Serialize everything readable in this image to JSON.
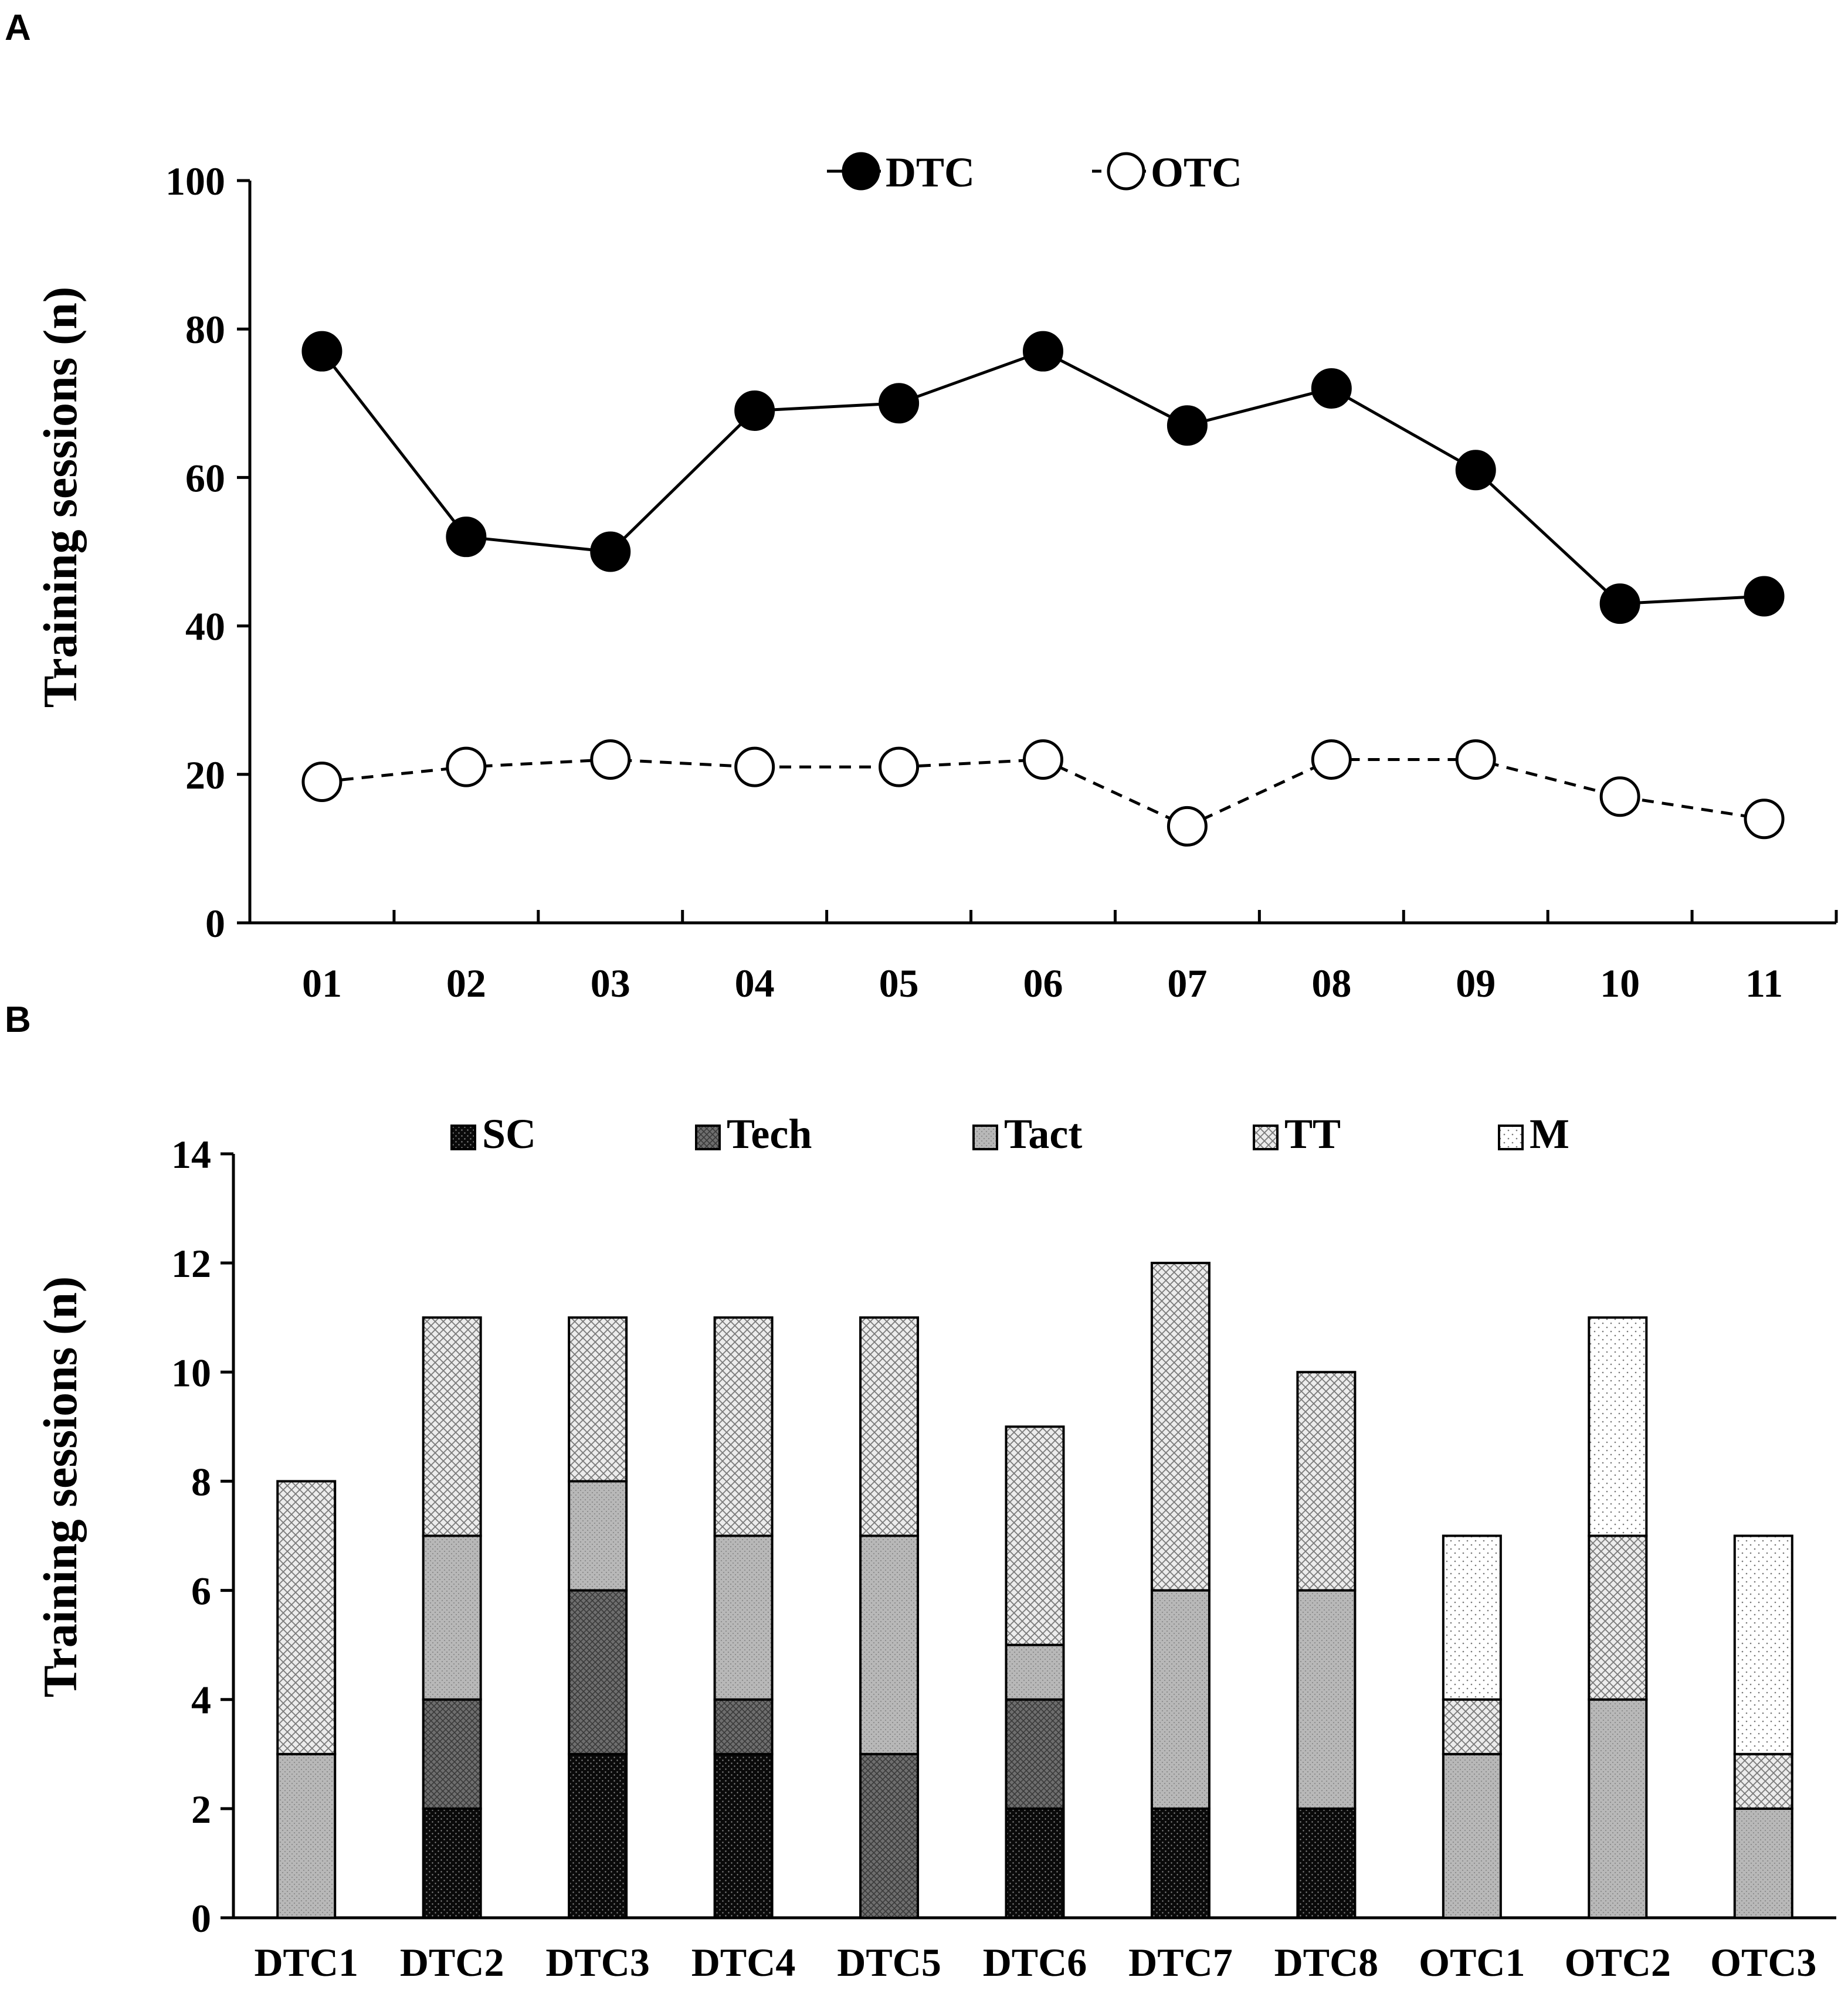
{
  "panels": {
    "a_letter": "A",
    "b_letter": "B"
  },
  "chart_data": [
    {
      "type": "line",
      "categories": [
        "01",
        "02",
        "03",
        "04",
        "05",
        "06",
        "07",
        "08",
        "09",
        "10",
        "11"
      ],
      "series": [
        {
          "name": "DTC",
          "values": [
            77,
            52,
            50,
            69,
            70,
            77,
            67,
            72,
            61,
            43,
            44
          ],
          "marker": "filled-circle",
          "line": "solid"
        },
        {
          "name": "OTC",
          "values": [
            19,
            21,
            22,
            21,
            21,
            22,
            13,
            22,
            22,
            17,
            14
          ],
          "marker": "open-circle",
          "line": "dashed"
        }
      ],
      "ylabel": "Training sessions (n)",
      "ylim": [
        0,
        100
      ],
      "yticks": [
        "0",
        "20",
        "40",
        "60",
        "80",
        "100"
      ],
      "legend": "top-center",
      "grid": false
    },
    {
      "type": "bar",
      "stacked": true,
      "categories": [
        "DTC1",
        "DTC2",
        "DTC3",
        "DTC4",
        "DTC5",
        "DTC6",
        "DTC7",
        "DTC8",
        "OTC1",
        "OTC2",
        "OTC3"
      ],
      "series": [
        {
          "name": "SC",
          "values": [
            0,
            2,
            3,
            3,
            0,
            2,
            2,
            2,
            0,
            0,
            0
          ],
          "color": "#111111"
        },
        {
          "name": "Tech",
          "values": [
            0,
            2,
            3,
            1,
            3,
            2,
            0,
            0,
            0,
            0,
            0
          ],
          "color": "#777777"
        },
        {
          "name": "Tact",
          "values": [
            3,
            3,
            2,
            3,
            4,
            1,
            4,
            4,
            3,
            4,
            2
          ],
          "color": "#bbbbbb"
        },
        {
          "name": "TT",
          "values": [
            5,
            4,
            3,
            4,
            4,
            4,
            6,
            4,
            1,
            3,
            1
          ],
          "color": "#dddddd"
        },
        {
          "name": "M",
          "values": [
            0,
            0,
            0,
            0,
            0,
            0,
            0,
            0,
            3,
            4,
            4
          ],
          "color": "#f6f6f6"
        }
      ],
      "ylabel": "Training sessions (n)",
      "ylim": [
        0,
        14
      ],
      "yticks": [
        "0",
        "2",
        "4",
        "6",
        "8",
        "10",
        "12",
        "14"
      ],
      "legend": "top-center",
      "grid": false
    }
  ]
}
